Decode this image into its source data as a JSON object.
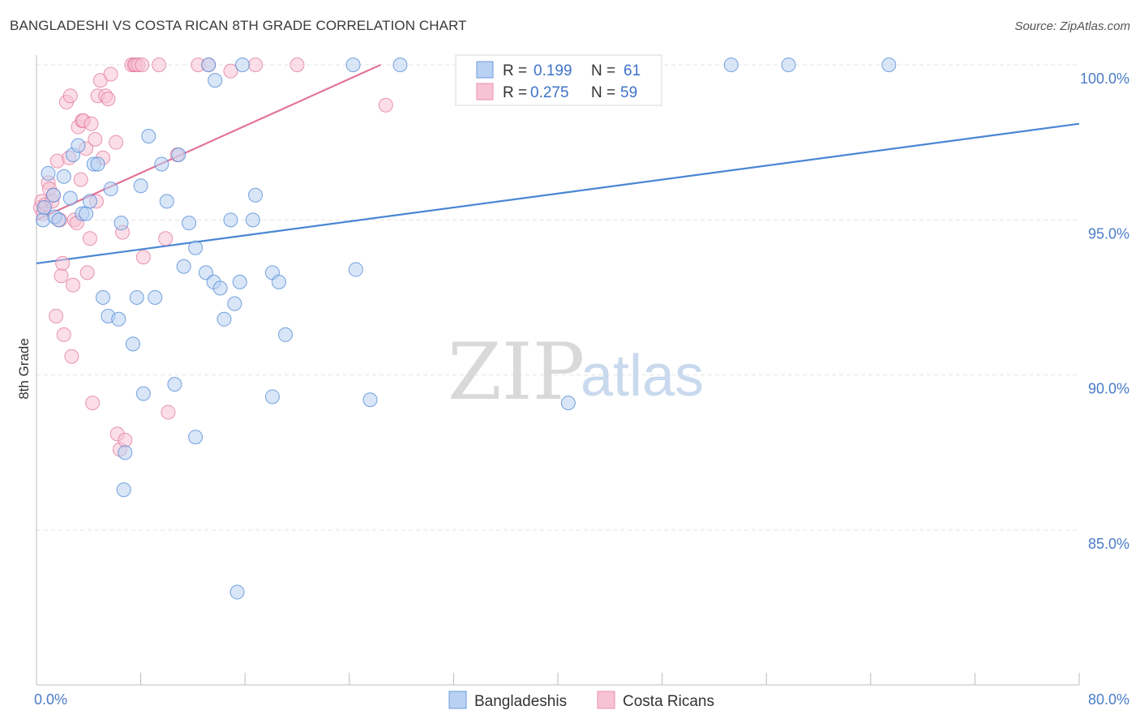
{
  "header": {
    "title": "BANGLADESHI VS COSTA RICAN 8TH GRADE CORRELATION CHART",
    "source": "Source: ZipAtlas.com"
  },
  "watermark": {
    "zip": "ZIP",
    "atlas": "atlas"
  },
  "colors": {
    "blue": "#4a86d4",
    "blue_fill": "#b9d1f2",
    "pink": "#e27499",
    "pink_fill": "#f7c3d4",
    "grid": "#e3e3e3",
    "tick_label": "#4a7cc7"
  },
  "legend_top": {
    "rows": [
      {
        "r_label": "R =",
        "r_value": "0.199",
        "n_label": "N =",
        "n_value": "61"
      },
      {
        "r_label": "R =",
        "r_value": "0.275",
        "n_label": "N =",
        "n_value": "59"
      }
    ]
  },
  "legend_bottom": {
    "items": [
      "Bangladeshis",
      "Costa Ricans"
    ]
  },
  "chart_data": {
    "type": "scatter",
    "title": "BANGLADESHI VS COSTA RICAN 8TH GRADE CORRELATION CHART",
    "xlabel": "",
    "ylabel": "8th Grade",
    "xlim": [
      0,
      80
    ],
    "ylim": [
      80.5,
      101
    ],
    "x_tick_labels": [
      "0.0%",
      "80.0%"
    ],
    "y_ticks": [
      85,
      90,
      95,
      100
    ],
    "y_tick_labels": [
      "85.0%",
      "90.0%",
      "95.0%",
      "100.0%"
    ],
    "grid": true,
    "series": [
      {
        "name": "Bangladeshis",
        "R": 0.199,
        "N": 61,
        "trendline": {
          "x": [
            0,
            80
          ],
          "y": [
            93.6,
            98.1
          ]
        },
        "points": [
          [
            0.5,
            95.0
          ],
          [
            0.6,
            95.4
          ],
          [
            0.9,
            96.5
          ],
          [
            1.3,
            95.8
          ],
          [
            1.4,
            95.1
          ],
          [
            1.7,
            95.0
          ],
          [
            2.1,
            96.4
          ],
          [
            2.6,
            95.7
          ],
          [
            2.8,
            97.1
          ],
          [
            3.2,
            97.4
          ],
          [
            3.5,
            95.2
          ],
          [
            3.8,
            95.2
          ],
          [
            4.1,
            95.6
          ],
          [
            4.4,
            96.8
          ],
          [
            4.7,
            96.8
          ],
          [
            5.1,
            92.5
          ],
          [
            5.5,
            91.9
          ],
          [
            5.7,
            96.0
          ],
          [
            6.3,
            91.8
          ],
          [
            6.5,
            94.9
          ],
          [
            6.7,
            86.3
          ],
          [
            6.8,
            87.5
          ],
          [
            7.4,
            91.0
          ],
          [
            7.7,
            92.5
          ],
          [
            8.0,
            96.1
          ],
          [
            8.2,
            89.4
          ],
          [
            8.6,
            97.7
          ],
          [
            9.1,
            92.5
          ],
          [
            9.6,
            96.8
          ],
          [
            10.0,
            95.6
          ],
          [
            10.6,
            89.7
          ],
          [
            10.9,
            97.1
          ],
          [
            11.3,
            93.5
          ],
          [
            11.7,
            94.9
          ],
          [
            12.2,
            94.1
          ],
          [
            12.2,
            88.0
          ],
          [
            13.0,
            93.3
          ],
          [
            13.2,
            100.0
          ],
          [
            13.6,
            93.0
          ],
          [
            13.7,
            99.5
          ],
          [
            14.1,
            92.8
          ],
          [
            14.4,
            91.8
          ],
          [
            14.9,
            95.0
          ],
          [
            15.2,
            92.3
          ],
          [
            15.4,
            83.0
          ],
          [
            15.6,
            93.0
          ],
          [
            15.8,
            100.0
          ],
          [
            16.6,
            95.0
          ],
          [
            16.8,
            95.8
          ],
          [
            18.1,
            93.3
          ],
          [
            18.6,
            93.0
          ],
          [
            18.1,
            89.3
          ],
          [
            19.1,
            91.3
          ],
          [
            24.3,
            100.0
          ],
          [
            24.5,
            93.4
          ],
          [
            25.6,
            89.2
          ],
          [
            27.9,
            100.0
          ],
          [
            40.8,
            89.1
          ],
          [
            53.3,
            100.0
          ],
          [
            57.7,
            100.0
          ],
          [
            65.4,
            100.0
          ]
        ]
      },
      {
        "name": "Costa Ricans",
        "R": 0.275,
        "N": 59,
        "trendline": {
          "x": [
            0,
            26.4
          ],
          "y": [
            95.0,
            100.0
          ]
        },
        "points": [
          [
            0.3,
            95.4
          ],
          [
            0.4,
            95.6
          ],
          [
            0.5,
            95.2
          ],
          [
            0.7,
            95.5
          ],
          [
            0.9,
            96.2
          ],
          [
            1.0,
            96.0
          ],
          [
            1.2,
            95.6
          ],
          [
            1.3,
            95.8
          ],
          [
            1.5,
            91.9
          ],
          [
            1.6,
            96.9
          ],
          [
            1.8,
            95.0
          ],
          [
            1.9,
            93.2
          ],
          [
            2.0,
            93.6
          ],
          [
            2.1,
            91.3
          ],
          [
            2.3,
            98.8
          ],
          [
            2.5,
            97.0
          ],
          [
            2.6,
            99.0
          ],
          [
            2.7,
            90.6
          ],
          [
            2.8,
            92.9
          ],
          [
            2.9,
            95.0
          ],
          [
            3.1,
            94.9
          ],
          [
            3.2,
            98.0
          ],
          [
            3.4,
            96.3
          ],
          [
            3.5,
            98.2
          ],
          [
            3.6,
            98.2
          ],
          [
            3.8,
            97.3
          ],
          [
            3.9,
            93.3
          ],
          [
            4.1,
            94.4
          ],
          [
            4.2,
            98.1
          ],
          [
            4.3,
            89.1
          ],
          [
            4.5,
            97.6
          ],
          [
            4.6,
            95.6
          ],
          [
            4.7,
            99.0
          ],
          [
            4.9,
            99.5
          ],
          [
            5.1,
            97.0
          ],
          [
            5.3,
            99.0
          ],
          [
            5.5,
            98.9
          ],
          [
            5.7,
            99.7
          ],
          [
            6.1,
            97.5
          ],
          [
            6.2,
            88.1
          ],
          [
            6.4,
            87.6
          ],
          [
            6.6,
            94.6
          ],
          [
            6.8,
            87.9
          ],
          [
            7.3,
            100.0
          ],
          [
            7.5,
            100.0
          ],
          [
            7.6,
            100.0
          ],
          [
            7.8,
            100.0
          ],
          [
            8.1,
            100.0
          ],
          [
            8.2,
            93.8
          ],
          [
            9.4,
            100.0
          ],
          [
            9.9,
            94.4
          ],
          [
            10.1,
            88.8
          ],
          [
            10.8,
            97.1
          ],
          [
            12.4,
            100.0
          ],
          [
            13.2,
            100.0
          ],
          [
            14.9,
            99.8
          ],
          [
            16.8,
            100.0
          ],
          [
            20.0,
            100.0
          ],
          [
            26.8,
            98.7
          ]
        ]
      }
    ]
  }
}
